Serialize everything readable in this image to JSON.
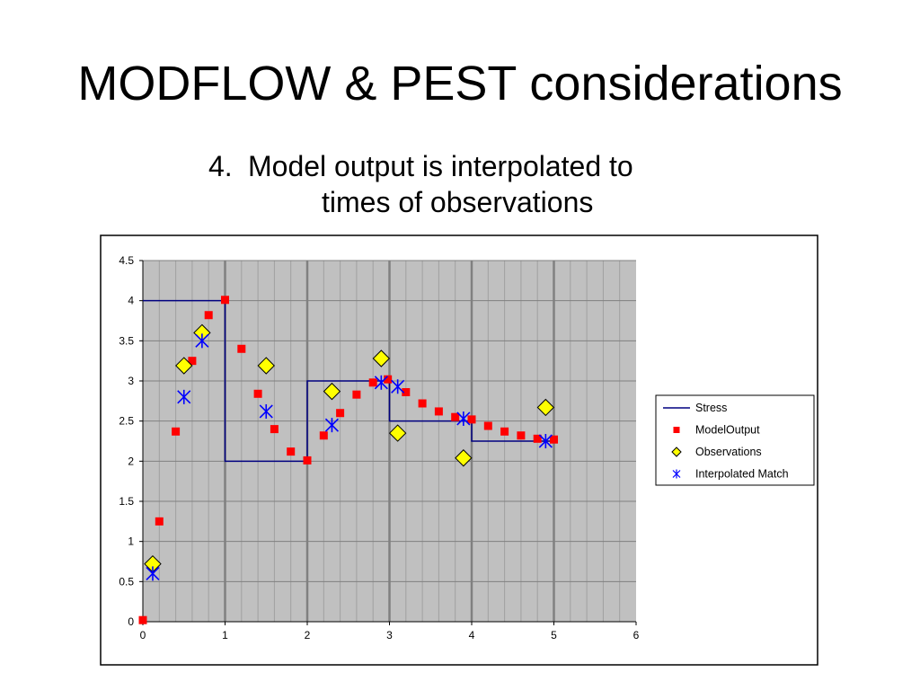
{
  "slide": {
    "title": "MODFLOW & PEST considerations",
    "bullet_number": "4.",
    "bullet_line1": "Model output is interpolated to",
    "bullet_line2": "times of observations"
  },
  "colors": {
    "plot_bg": "#c0c0c0",
    "grid_minor": "#a0a0a0",
    "grid_major": "#808080",
    "stress": "#000080",
    "model_output": "#ff0000",
    "observations_fill": "#ffff00",
    "interpolated": "#0000ff"
  },
  "chart_data": {
    "type": "scatter",
    "title": "",
    "xlabel": "",
    "ylabel": "",
    "xlim": [
      0,
      6
    ],
    "ylim": [
      0,
      4.5
    ],
    "x_ticks": [
      "0",
      "1",
      "2",
      "3",
      "4",
      "5",
      "6"
    ],
    "y_ticks": [
      "0",
      "0.5",
      "1",
      "1.5",
      "2",
      "2.5",
      "3",
      "3.5",
      "4",
      "4.5"
    ],
    "x_minor_step": 0.2,
    "grid": true,
    "legend_position": "right",
    "series": [
      {
        "name": "Stress",
        "kind": "line",
        "x": [
          0,
          1,
          1,
          2,
          2,
          3,
          3,
          4,
          4,
          5
        ],
        "y": [
          4,
          4,
          2,
          2,
          3,
          3,
          2.5,
          2.5,
          2.25,
          2.25
        ]
      },
      {
        "name": "ModelOutput",
        "kind": "square",
        "x": [
          0,
          0.2,
          0.4,
          0.6,
          0.8,
          1.0,
          1.2,
          1.4,
          1.6,
          1.8,
          2.0,
          2.2,
          2.4,
          2.6,
          2.8,
          2.98,
          3.2,
          3.4,
          3.6,
          3.8,
          4.0,
          4.2,
          4.4,
          4.6,
          4.8,
          5.0
        ],
        "y": [
          0.02,
          1.25,
          2.37,
          3.25,
          3.82,
          4.01,
          3.4,
          2.84,
          2.4,
          2.12,
          2.01,
          2.32,
          2.6,
          2.83,
          2.98,
          3.02,
          2.86,
          2.72,
          2.62,
          2.55,
          2.52,
          2.44,
          2.37,
          2.32,
          2.28,
          2.27
        ]
      },
      {
        "name": "Observations",
        "kind": "diamond",
        "x": [
          0.12,
          0.5,
          0.72,
          1.5,
          2.3,
          2.9,
          3.1,
          3.9,
          4.9
        ],
        "y": [
          0.72,
          3.19,
          3.6,
          3.19,
          2.87,
          3.28,
          2.35,
          2.04,
          2.67
        ]
      },
      {
        "name": "Interpolated Match",
        "kind": "asterisk",
        "x": [
          0.12,
          0.5,
          0.72,
          1.5,
          2.3,
          2.9,
          3.1,
          3.9,
          4.9
        ],
        "y": [
          0.6,
          2.8,
          3.5,
          2.62,
          2.45,
          2.98,
          2.93,
          2.53,
          2.25
        ]
      }
    ]
  }
}
